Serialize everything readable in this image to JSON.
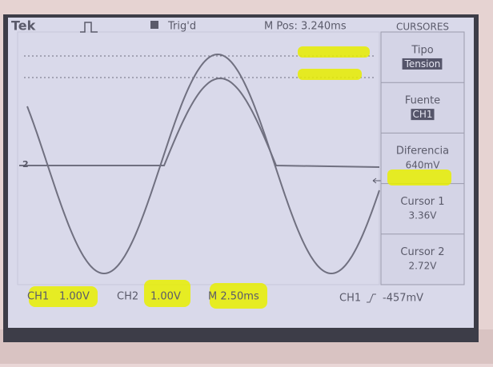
{
  "header": {
    "brand": "Tek",
    "trigger_status": "Trig'd",
    "position": "M Pos: 3.240ms"
  },
  "menu": {
    "title": "CURSORES",
    "items": [
      {
        "label": "Tipo",
        "value": "Tension"
      },
      {
        "label": "Fuente",
        "value": "CH1"
      },
      {
        "label": "Diferencia",
        "value": "640mV"
      },
      {
        "label": "Cursor 1",
        "value": "3.36V"
      },
      {
        "label": "Cursor 2",
        "value": "2.72V"
      }
    ]
  },
  "markers": {
    "channel": "2"
  },
  "footer": {
    "ch1_label": "CH1",
    "ch1_scale": "1.00V",
    "ch2_label": "CH2",
    "ch2_scale": "1.00V",
    "timebase": "M 2.50ms",
    "trigger_source": "CH1",
    "trigger_level": "-457mV"
  }
}
